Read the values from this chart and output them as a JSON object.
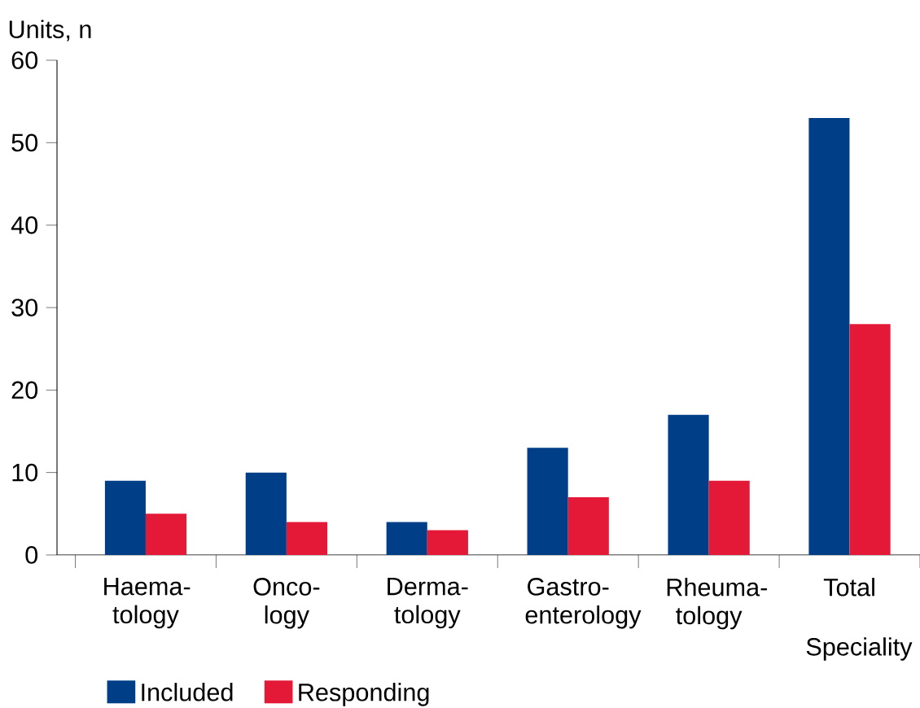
{
  "chart_data": {
    "type": "bar",
    "xlabel": "Speciality",
    "ylabel": "Units, n",
    "categories": [
      "Haema-tology",
      "Onco-logy",
      "Derma-tology",
      "Gastro-enterology",
      "Rheuma-tology",
      "Total"
    ],
    "series": [
      {
        "name": "Included",
        "color": "#003f87",
        "values": [
          9,
          10,
          4,
          13,
          17,
          53
        ]
      },
      {
        "name": "Responding",
        "color": "#e31937",
        "values": [
          5,
          4,
          3,
          7,
          9,
          28
        ]
      }
    ],
    "ylim": [
      0,
      60
    ],
    "yticks": [
      0,
      10,
      20,
      30,
      40,
      50,
      60
    ],
    "legend": "bottom left"
  }
}
